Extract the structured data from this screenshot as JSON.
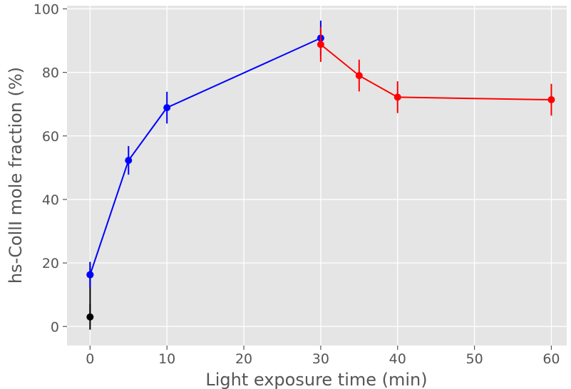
{
  "chart_data": {
    "type": "line",
    "xlabel": "Light exposure time (min)",
    "ylabel": "hs-CollI mole fraction (%)",
    "xlim": [
      -3,
      62
    ],
    "ylim": [
      -6,
      101
    ],
    "x_ticks": [
      0,
      10,
      20,
      30,
      40,
      50,
      60
    ],
    "y_ticks": [
      0,
      20,
      40,
      60,
      80,
      100
    ],
    "grid": true,
    "background": "#e5e5e5",
    "grid_color": "#ffffff",
    "series": [
      {
        "color": "#000000",
        "x": [
          0,
          0
        ],
        "y": [
          3,
          16.3
        ],
        "err": [
          4,
          4
        ]
      },
      {
        "color": "#0000ff",
        "x": [
          0,
          5,
          10,
          30
        ],
        "y": [
          16.3,
          52.3,
          68.9,
          90.8
        ],
        "err": [
          4,
          4.5,
          5,
          5.5
        ]
      },
      {
        "color": "#ff0000",
        "x": [
          30,
          35,
          40,
          60
        ],
        "y": [
          88.8,
          79,
          72.2,
          71.4
        ],
        "err": [
          5.5,
          5,
          5,
          5
        ]
      }
    ]
  }
}
